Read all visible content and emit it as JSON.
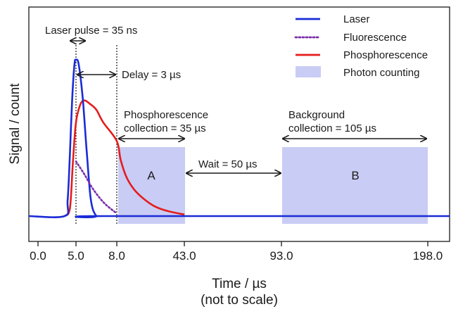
{
  "chart_data": {
    "type": "line",
    "xlabel": "Time / µs",
    "xlabel_note": "(not to scale)",
    "ylabel": "Signal / count",
    "x_scale": "piecewise (not to scale)",
    "x_ticks": [
      {
        "value": 0.0,
        "label": "0.0"
      },
      {
        "value": 5.0,
        "label": "5.0"
      },
      {
        "value": 8.0,
        "label": "8.0"
      },
      {
        "value": 43.0,
        "label": "43.0"
      },
      {
        "value": 93.0,
        "label": "93.0"
      },
      {
        "value": 198.0,
        "label": "198.0"
      }
    ],
    "xlim": [
      -0.6,
      215
    ],
    "ylim": [
      0,
      1.0
    ],
    "grid": false,
    "legend_placement": "top-right",
    "series": [
      {
        "name": "Laser",
        "style": "solid",
        "color": "#1a2bd6",
        "x": [
          -0.6,
          3.5,
          3.9,
          4.2,
          4.5,
          4.8,
          5.0,
          5.2,
          5.5,
          5.8,
          6.1,
          6.5,
          7.0,
          215
        ],
        "y": [
          0.0,
          0.0,
          0.1,
          0.4,
          0.75,
          0.97,
          1.0,
          0.97,
          0.75,
          0.4,
          0.1,
          0.0,
          0.0,
          0.0
        ]
      },
      {
        "name": "Fluorescence",
        "style": "dotted",
        "color": "#7a2fa8",
        "x": [
          5.0,
          5.6,
          6.2,
          7.0,
          7.8,
          8.0
        ],
        "y": [
          0.35,
          0.27,
          0.18,
          0.09,
          0.03,
          0.02
        ]
      },
      {
        "name": "Phosphorescence",
        "style": "solid",
        "color": "#e51c1c",
        "x": [
          3.5,
          4.2,
          4.6,
          5.0,
          5.3,
          5.6,
          6.0,
          6.5,
          7.0,
          8.0,
          10,
          13,
          17,
          22,
          28,
          35,
          43
        ],
        "y": [
          0.0,
          0.05,
          0.35,
          0.6,
          0.71,
          0.74,
          0.72,
          0.68,
          0.6,
          0.48,
          0.36,
          0.25,
          0.17,
          0.11,
          0.06,
          0.03,
          0.01
        ]
      }
    ],
    "shaded_regions": [
      {
        "name": "Photon counting",
        "label": "A",
        "x": [
          8.0,
          43.0
        ],
        "y": [
          0,
          0.49
        ],
        "color": "#c9ccf4"
      },
      {
        "name": "Photon counting",
        "label": "B",
        "x": [
          93.0,
          198.0
        ],
        "y": [
          0,
          0.49
        ],
        "color": "#c9ccf4"
      }
    ],
    "legend": [
      {
        "name": "Laser",
        "style": "solid",
        "color": "#1a2bd6"
      },
      {
        "name": "Fluorescence",
        "style": "dotted",
        "color": "#7a2fa8"
      },
      {
        "name": "Phosphorescence",
        "style": "solid",
        "color": "#e51c1c"
      },
      {
        "name": "Photon counting",
        "style": "patch",
        "color": "#c9ccf4"
      }
    ],
    "annotations": {
      "laser_pulse": "Laser pulse = 35 ns",
      "delay": "Delay = 3 µs",
      "phos_line1": "Phosphorescence",
      "phos_line2": "collection = 35 µs",
      "wait": "Wait = 50 µs",
      "bg_line1": "Background",
      "bg_line2": "collection = 105 µs"
    }
  }
}
